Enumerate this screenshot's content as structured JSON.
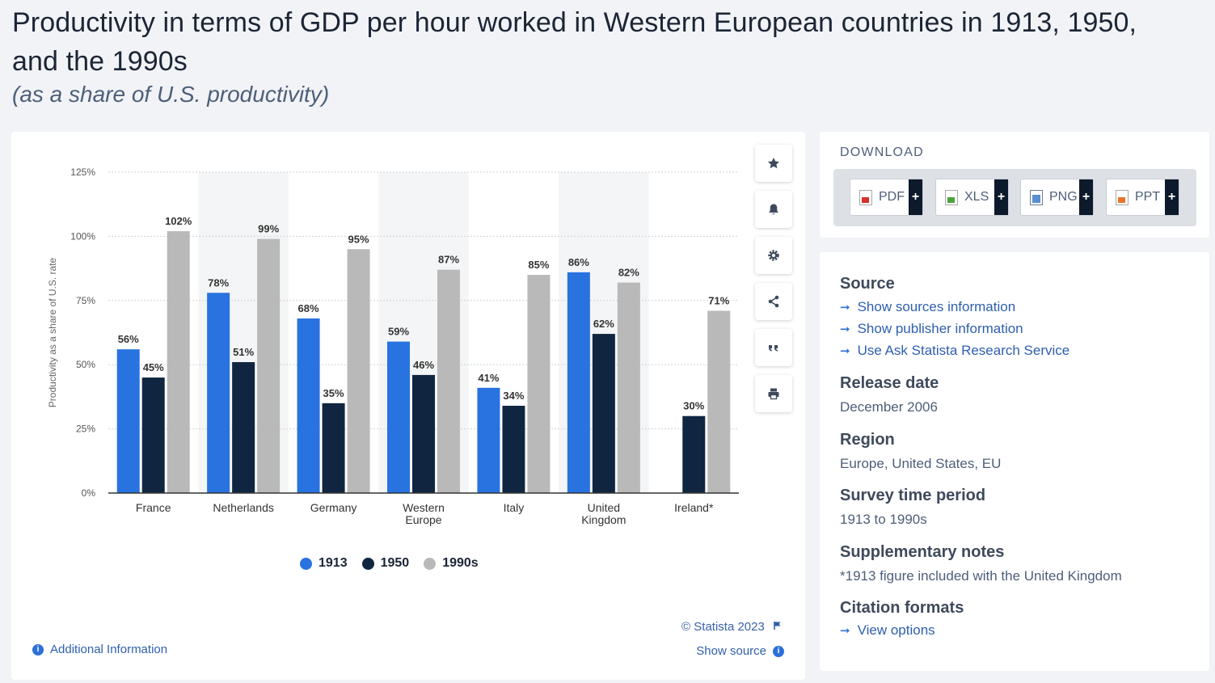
{
  "header": {
    "title": "Productivity in terms of GDP per hour worked in Western European countries in 1913, 1950, and the 1990s",
    "subtitle": "(as a share of U.S. productivity)"
  },
  "chart_data": {
    "type": "bar",
    "categories": [
      "France",
      "Netherlands",
      "Germany",
      "Western Europe",
      "Italy",
      "United Kingdom",
      "Ireland*"
    ],
    "series": [
      {
        "name": "1913",
        "color": "#2873e0",
        "values": [
          56,
          78,
          68,
          59,
          41,
          86,
          null
        ]
      },
      {
        "name": "1950",
        "color": "#102640",
        "values": [
          45,
          51,
          35,
          46,
          34,
          62,
          30
        ]
      },
      {
        "name": "1990s",
        "color": "#b9b9b9",
        "values": [
          102,
          99,
          95,
          87,
          85,
          82,
          71
        ]
      }
    ],
    "ylabel": "Productivity as a share of U.S. rate",
    "ylim": [
      0,
      125
    ],
    "yticks": [
      "0%",
      "25%",
      "50%",
      "75%",
      "100%",
      "125%"
    ],
    "value_suffix": "%",
    "grid": true,
    "legend_position": "bottom"
  },
  "toolbar": {
    "icons": [
      "star-icon",
      "bell-icon",
      "gear-icon",
      "share-icon",
      "quote-icon",
      "print-icon"
    ]
  },
  "footer": {
    "copyright": "© Statista 2023",
    "show_source": "Show source",
    "additional_info": "Additional Information"
  },
  "download": {
    "title": "DOWNLOAD",
    "buttons": [
      {
        "label": "PDF",
        "icon": "pdf-icon"
      },
      {
        "label": "XLS",
        "icon": "xls-icon"
      },
      {
        "label": "PNG",
        "icon": "png-icon"
      },
      {
        "label": "PPT",
        "icon": "ppt-icon"
      }
    ],
    "plus": "+"
  },
  "info": {
    "source_heading": "Source",
    "source_links": [
      "Show sources information",
      "Show publisher information",
      "Use Ask Statista Research Service"
    ],
    "release_heading": "Release date",
    "release_value": "December 2006",
    "region_heading": "Region",
    "region_value": "Europe, United States, EU",
    "period_heading": "Survey time period",
    "period_value": "1913 to 1990s",
    "notes_heading": "Supplementary notes",
    "notes_value": "*1913 figure included with the United Kingdom",
    "citation_heading": "Citation formats",
    "citation_link": "View options"
  }
}
